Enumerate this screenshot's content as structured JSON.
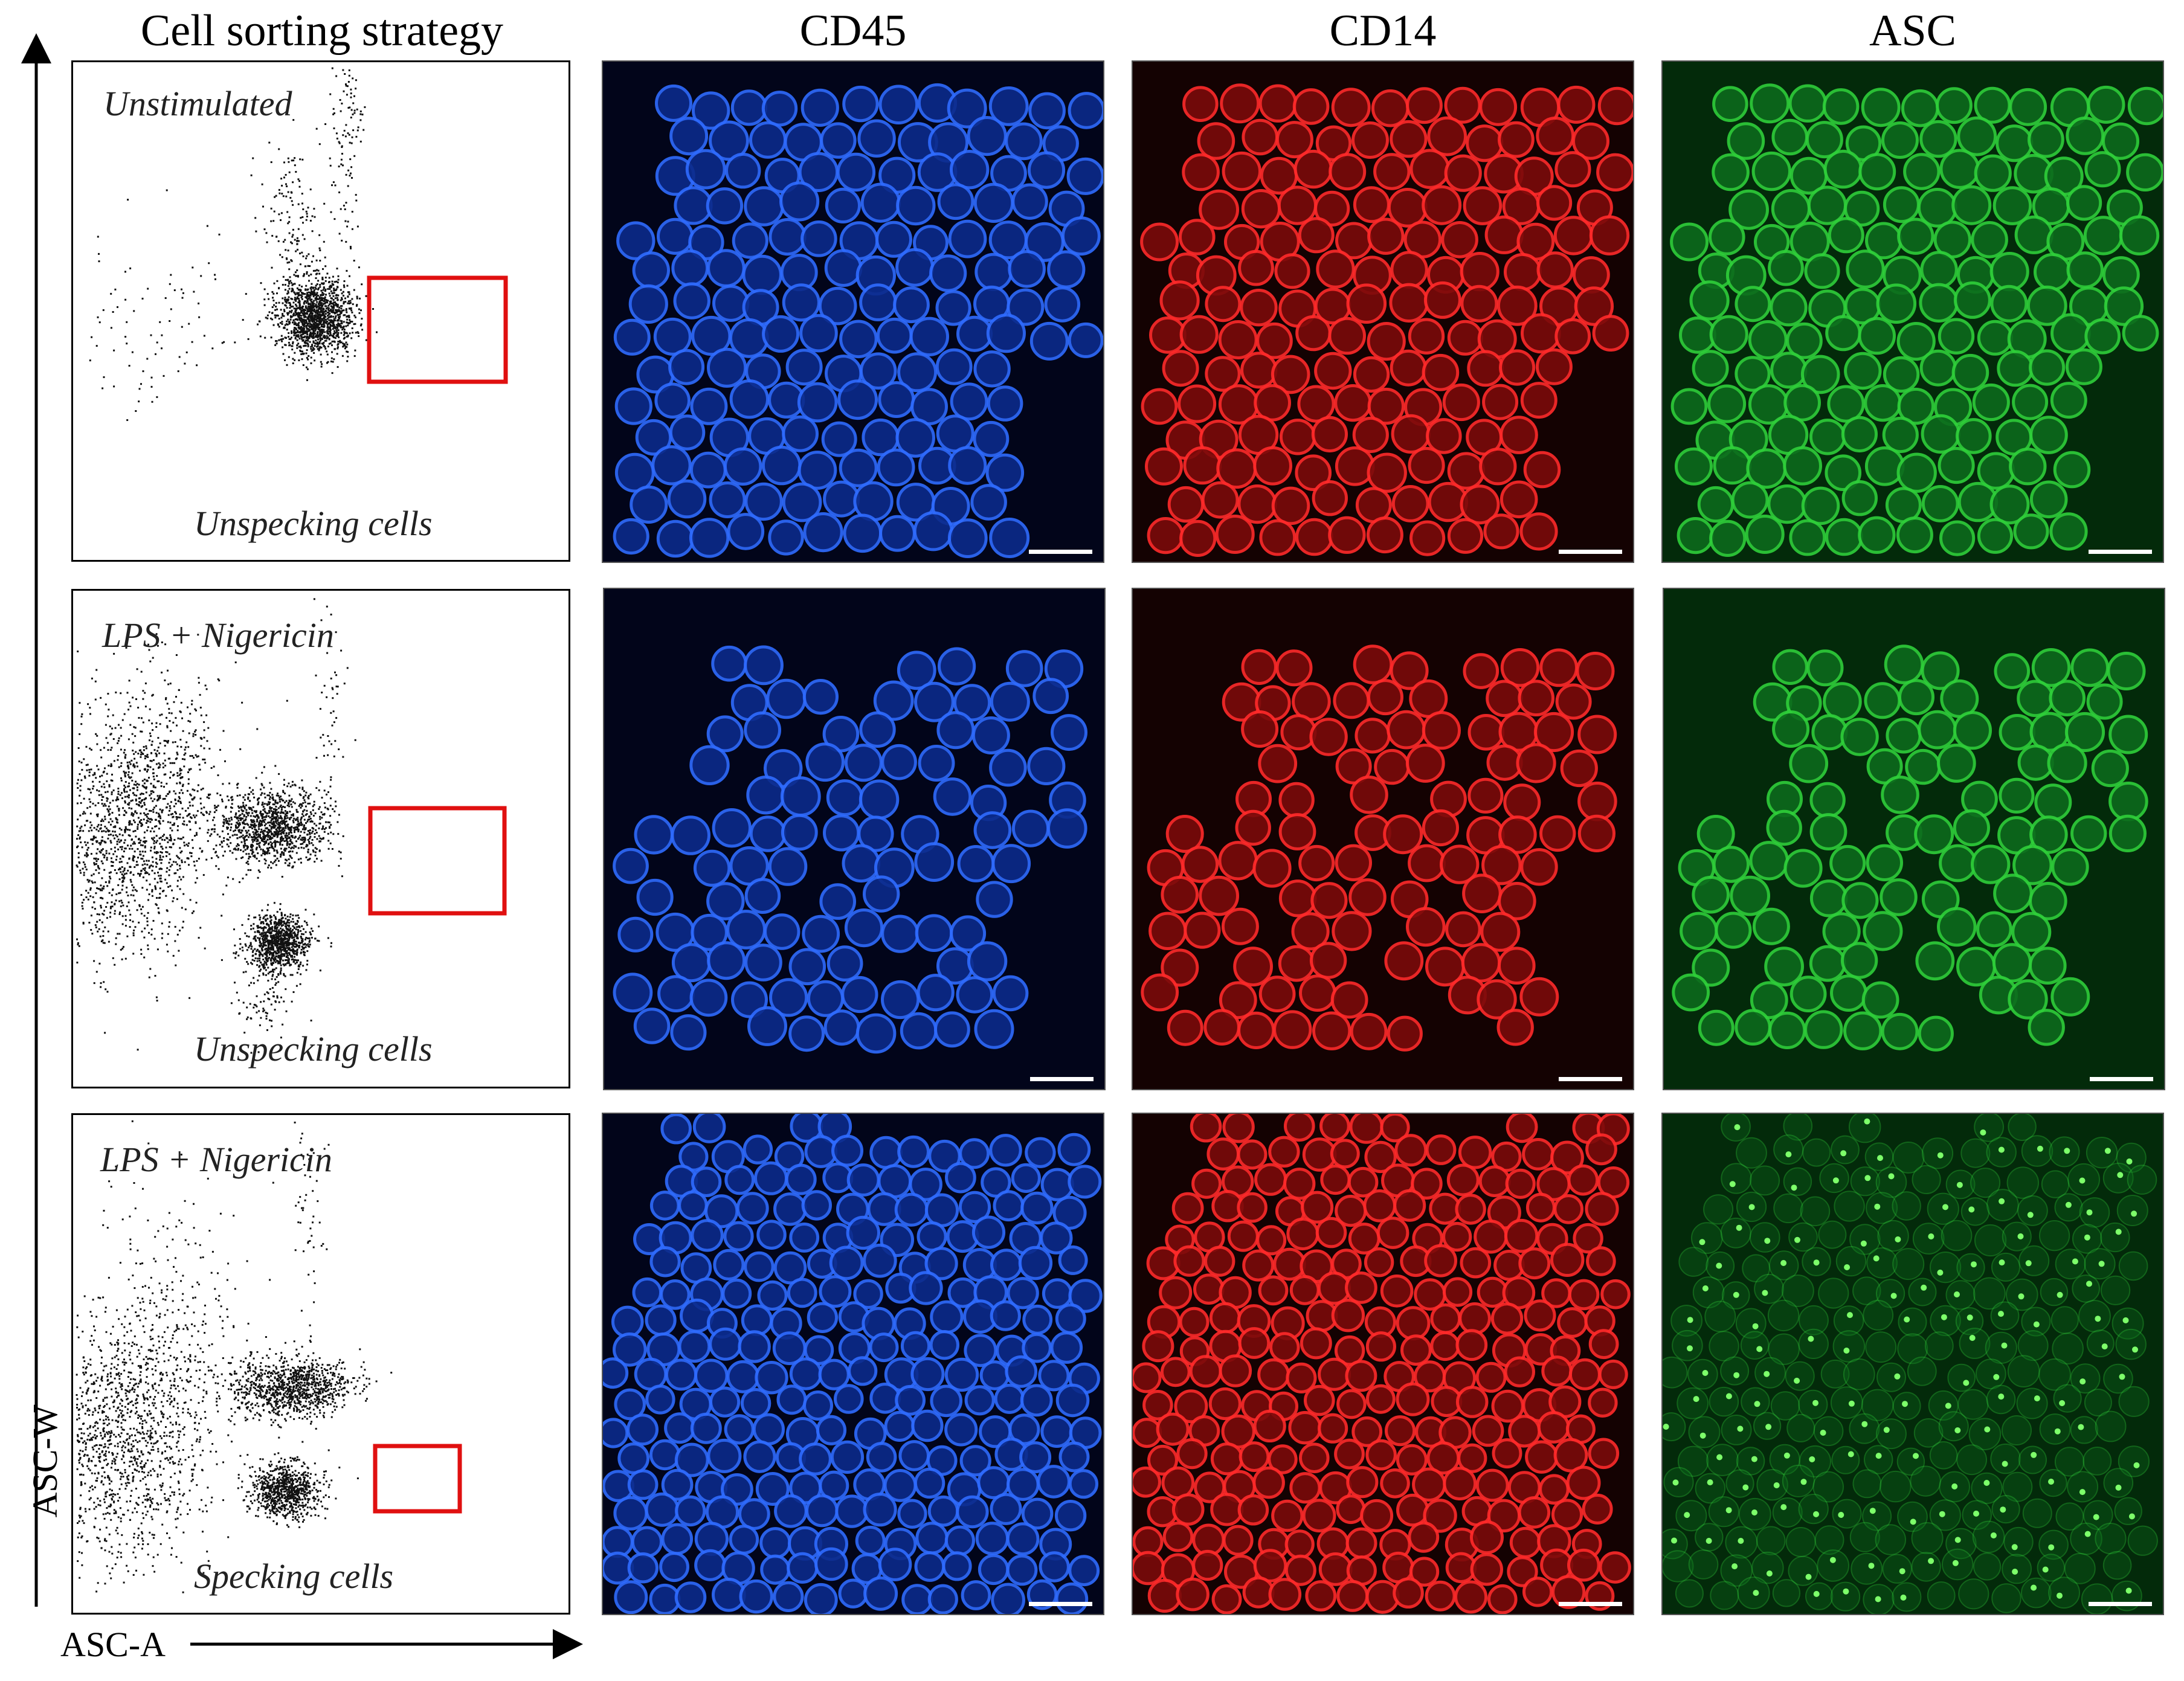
{
  "figure": {
    "columns": {
      "flow_title": "Cell sorting strategy",
      "cd45": "CD45",
      "cd14": "CD14",
      "asc": "ASC"
    },
    "axes": {
      "y_label": "ASC-W",
      "x_label": "ASC-A"
    },
    "rows": [
      {
        "condition": "Unstimulated",
        "gate_label": "Unspecking cells"
      },
      {
        "condition": "LPS + Nigericin",
        "gate_label": "Unspecking cells"
      },
      {
        "condition": "LPS + Nigericin",
        "gate_label": "Specking cells"
      }
    ],
    "colors": {
      "cd45": "#1a4fe0",
      "cd14": "#e01818",
      "asc": "#28c428",
      "gate": "#e01010"
    }
  }
}
